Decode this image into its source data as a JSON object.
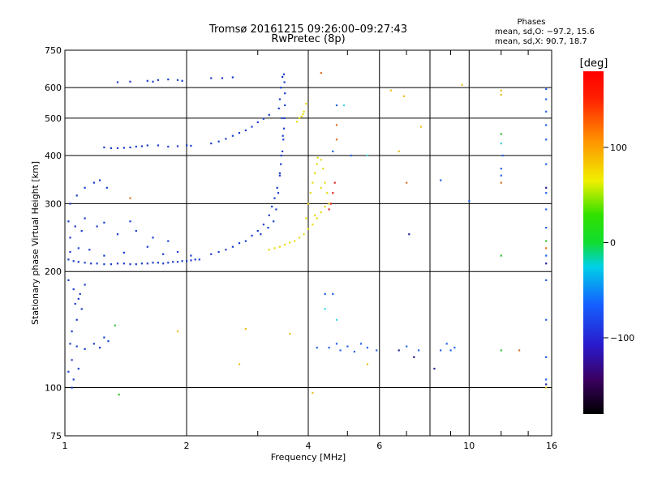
{
  "title": {
    "line1": "Tromsø 20161215 09:26:00–09:27:43",
    "line2": "RwPretec (8p)"
  },
  "phase_stats": {
    "heading": "Phases",
    "o_line": "mean, sd,O: −97.2, 15.6",
    "x_line": "mean, sd,X:  90.7, 18.7"
  },
  "chart_data": {
    "type": "scatter",
    "title": "Tromsø 20161215 09:26:00–09:27:43",
    "subtitle": "RwPretec (8p)",
    "xlabel": "Frequency [MHz]",
    "ylabel": "Stationary phase Virtual Height [km]",
    "x_scale": "log",
    "y_scale": "log",
    "xlim": [
      1,
      16
    ],
    "ylim": [
      75,
      750
    ],
    "x_ticks": [
      1,
      2,
      4,
      6,
      10,
      16
    ],
    "x_tick_labels": [
      "1",
      "2",
      "4",
      "6",
      "10",
      "16"
    ],
    "y_ticks": [
      75,
      100,
      200,
      300,
      400,
      500,
      600,
      750
    ],
    "y_tick_labels": [
      "75",
      "100",
      "200",
      "300",
      "400",
      "500",
      "600",
      "750"
    ],
    "grid": true,
    "colorbar": {
      "label": "[deg]",
      "range": [
        -180,
        180
      ],
      "ticks": [
        100,
        0,
        -100
      ],
      "tick_labels": [
        "100",
        "0",
        "−100"
      ]
    },
    "series": [
      {
        "color": "#1a3ccc",
        "points": [
          [
            1.02,
            215
          ],
          [
            1.05,
            213
          ],
          [
            1.08,
            212
          ],
          [
            1.12,
            211
          ],
          [
            1.16,
            210
          ],
          [
            1.2,
            210
          ],
          [
            1.25,
            209
          ],
          [
            1.3,
            209
          ],
          [
            1.35,
            210
          ],
          [
            1.4,
            210
          ],
          [
            1.45,
            209
          ],
          [
            1.5,
            209
          ],
          [
            1.55,
            210
          ],
          [
            1.6,
            210
          ],
          [
            1.65,
            211
          ],
          [
            1.7,
            211
          ],
          [
            1.75,
            210
          ],
          [
            1.8,
            211
          ],
          [
            1.85,
            212
          ],
          [
            1.9,
            212
          ],
          [
            1.95,
            213
          ],
          [
            2.0,
            213
          ],
          [
            2.05,
            214
          ],
          [
            2.1,
            215
          ],
          [
            2.15,
            215
          ],
          [
            1.03,
            225
          ],
          [
            1.08,
            230
          ],
          [
            1.15,
            228
          ],
          [
            1.25,
            220
          ],
          [
            1.4,
            224
          ],
          [
            1.6,
            232
          ],
          [
            1.75,
            222
          ],
          [
            1.9,
            225
          ],
          [
            2.05,
            220
          ],
          [
            1.03,
            245
          ],
          [
            1.1,
            255
          ],
          [
            1.2,
            262
          ],
          [
            1.35,
            250
          ],
          [
            1.5,
            255
          ],
          [
            1.65,
            245
          ],
          [
            1.8,
            240
          ],
          [
            1.02,
            270
          ],
          [
            1.06,
            262
          ],
          [
            1.12,
            275
          ],
          [
            1.25,
            268
          ],
          [
            1.45,
            270
          ],
          [
            1.03,
            300
          ],
          [
            1.07,
            315
          ],
          [
            1.12,
            330
          ],
          [
            1.18,
            340
          ],
          [
            1.22,
            345
          ],
          [
            1.27,
            330
          ],
          [
            1.02,
            190
          ],
          [
            1.05,
            180
          ],
          [
            1.08,
            170
          ],
          [
            1.1,
            160
          ],
          [
            1.07,
            150
          ],
          [
            1.04,
            140
          ],
          [
            1.09,
            175
          ],
          [
            1.12,
            185
          ],
          [
            1.06,
            165
          ],
          [
            1.03,
            130
          ],
          [
            1.07,
            128
          ],
          [
            1.12,
            126
          ],
          [
            1.18,
            130
          ],
          [
            1.25,
            135
          ],
          [
            1.22,
            127
          ],
          [
            1.28,
            132
          ],
          [
            1.04,
            118
          ],
          [
            1.02,
            110
          ],
          [
            1.05,
            105
          ],
          [
            1.04,
            100
          ],
          [
            1.08,
            112
          ],
          [
            1.25,
            420
          ],
          [
            1.3,
            418
          ],
          [
            1.35,
            418
          ],
          [
            1.4,
            419
          ],
          [
            1.45,
            420
          ],
          [
            1.5,
            422
          ],
          [
            1.55,
            423
          ],
          [
            1.6,
            425
          ],
          [
            1.7,
            425
          ],
          [
            1.8,
            422
          ],
          [
            1.9,
            423
          ],
          [
            2.0,
            425
          ],
          [
            2.05,
            424
          ],
          [
            2.3,
            430
          ],
          [
            2.4,
            435
          ],
          [
            2.5,
            442
          ],
          [
            2.6,
            450
          ],
          [
            2.7,
            458
          ],
          [
            2.8,
            465
          ],
          [
            2.9,
            475
          ],
          [
            3.0,
            488
          ],
          [
            3.1,
            498
          ],
          [
            3.2,
            510
          ],
          [
            1.35,
            620
          ],
          [
            1.45,
            622
          ],
          [
            1.6,
            625
          ],
          [
            1.65,
            622
          ],
          [
            1.7,
            628
          ],
          [
            1.8,
            630
          ],
          [
            1.9,
            628
          ],
          [
            1.95,
            625
          ],
          [
            2.3,
            635
          ],
          [
            2.45,
            635
          ],
          [
            2.6,
            638
          ],
          [
            2.3,
            222
          ],
          [
            2.4,
            225
          ],
          [
            2.5,
            228
          ],
          [
            2.6,
            232
          ],
          [
            2.7,
            237
          ],
          [
            2.8,
            240
          ],
          [
            2.9,
            248
          ],
          [
            3.0,
            255
          ],
          [
            3.1,
            265
          ],
          [
            3.2,
            280
          ],
          [
            3.25,
            295
          ],
          [
            3.3,
            310
          ],
          [
            3.35,
            330
          ],
          [
            3.4,
            355
          ],
          [
            3.42,
            380
          ],
          [
            3.45,
            410
          ],
          [
            3.47,
            440
          ],
          [
            3.48,
            470
          ],
          [
            3.49,
            500
          ],
          [
            3.5,
            540
          ],
          [
            3.5,
            580
          ],
          [
            3.49,
            620
          ],
          [
            3.48,
            650
          ],
          [
            3.45,
            640
          ],
          [
            3.42,
            600
          ],
          [
            3.4,
            560
          ],
          [
            3.38,
            530
          ],
          [
            3.44,
            500
          ],
          [
            3.46,
            450
          ],
          [
            3.43,
            400
          ],
          [
            3.4,
            360
          ],
          [
            3.37,
            320
          ],
          [
            3.33,
            290
          ],
          [
            3.28,
            270
          ],
          [
            3.18,
            260
          ],
          [
            3.05,
            250
          ]
        ]
      },
      {
        "color": "#e6dc14",
        "points": [
          [
            3.2,
            228
          ],
          [
            3.3,
            230
          ],
          [
            3.4,
            232
          ],
          [
            3.5,
            235
          ],
          [
            3.6,
            238
          ],
          [
            3.7,
            240
          ],
          [
            3.8,
            245
          ],
          [
            3.9,
            250
          ],
          [
            4.0,
            258
          ],
          [
            4.1,
            265
          ],
          [
            4.2,
            275
          ],
          [
            4.3,
            285
          ],
          [
            4.4,
            295
          ],
          [
            4.0,
            300
          ],
          [
            4.05,
            320
          ],
          [
            4.1,
            340
          ],
          [
            4.15,
            360
          ],
          [
            4.2,
            380
          ],
          [
            4.22,
            395
          ],
          [
            4.3,
            390
          ],
          [
            4.35,
            370
          ],
          [
            4.4,
            340
          ],
          [
            4.45,
            320
          ],
          [
            4.5,
            300
          ],
          [
            4.3,
            330
          ],
          [
            4.15,
            280
          ],
          [
            3.95,
            275
          ],
          [
            3.8,
            500
          ],
          [
            3.85,
            505
          ],
          [
            3.9,
            520
          ],
          [
            3.95,
            545
          ],
          [
            3.75,
            490
          ],
          [
            3.88,
            512
          ]
        ]
      },
      {
        "color": "#e0202a",
        "points": [
          [
            4.55,
            300
          ],
          [
            4.6,
            320
          ],
          [
            4.5,
            290
          ],
          [
            4.65,
            340
          ]
        ]
      },
      {
        "color": "#2060e8",
        "points": [
          [
            4.2,
            127
          ],
          [
            4.5,
            127
          ],
          [
            4.8,
            125
          ],
          [
            5.2,
            124
          ],
          [
            5.4,
            130
          ],
          [
            5.6,
            127
          ],
          [
            5.9,
            125
          ],
          [
            4.7,
            130
          ],
          [
            5.0,
            128
          ],
          [
            7.0,
            128
          ],
          [
            7.5,
            125
          ],
          [
            8.5,
            125
          ],
          [
            8.8,
            130
          ],
          [
            9.2,
            127
          ],
          [
            9.0,
            125
          ],
          [
            15.5,
            120
          ],
          [
            15.5,
            150
          ],
          [
            15.5,
            190
          ],
          [
            15.5,
            220
          ],
          [
            15.5,
            260
          ],
          [
            15.5,
            290
          ],
          [
            15.5,
            320
          ],
          [
            15.5,
            380
          ],
          [
            15.5,
            440
          ],
          [
            15.5,
            480
          ],
          [
            15.5,
            520
          ],
          [
            15.5,
            560
          ],
          [
            15.5,
            595
          ],
          [
            15.5,
            105
          ],
          [
            12.0,
            355
          ],
          [
            12.0,
            370
          ],
          [
            12.1,
            400
          ],
          [
            10.0,
            305
          ],
          [
            8.5,
            345
          ],
          [
            4.7,
            540
          ],
          [
            4.6,
            410
          ],
          [
            5.1,
            400
          ],
          [
            4.4,
            175
          ],
          [
            4.6,
            175
          ]
        ]
      },
      {
        "color": "#40d4e0",
        "points": [
          [
            4.4,
            160
          ],
          [
            4.7,
            150
          ],
          [
            4.9,
            540
          ],
          [
            5.6,
            400
          ],
          [
            12.0,
            430
          ]
        ]
      },
      {
        "color": "#e8c020",
        "points": [
          [
            6.4,
            590
          ],
          [
            6.9,
            570
          ],
          [
            7.6,
            475
          ],
          [
            9.6,
            610
          ],
          [
            12.0,
            590
          ],
          [
            12.0,
            575
          ],
          [
            6.7,
            410
          ],
          [
            2.8,
            142
          ],
          [
            3.6,
            138
          ],
          [
            2.7,
            115
          ],
          [
            4.1,
            97
          ],
          [
            5.6,
            115
          ],
          [
            15.5,
            100
          ],
          [
            1.9,
            140
          ]
        ]
      },
      {
        "color": "#30c030",
        "points": [
          [
            1.36,
            96
          ],
          [
            1.33,
            145
          ],
          [
            12.0,
            455
          ],
          [
            12.0,
            220
          ],
          [
            15.5,
            240
          ],
          [
            12.0,
            125
          ]
        ]
      },
      {
        "color": "#e07020",
        "points": [
          [
            4.3,
            655
          ],
          [
            4.7,
            440
          ],
          [
            4.7,
            480
          ],
          [
            13.3,
            125
          ],
          [
            7.0,
            340
          ],
          [
            12.0,
            340
          ],
          [
            15.5,
            230
          ],
          [
            1.45,
            310
          ]
        ]
      },
      {
        "color": "#202090",
        "points": [
          [
            7.1,
            250
          ],
          [
            6.7,
            125
          ],
          [
            7.3,
            120
          ],
          [
            8.2,
            112
          ],
          [
            15.5,
            102
          ],
          [
            15.5,
            210
          ],
          [
            15.5,
            330
          ]
        ]
      }
    ]
  }
}
